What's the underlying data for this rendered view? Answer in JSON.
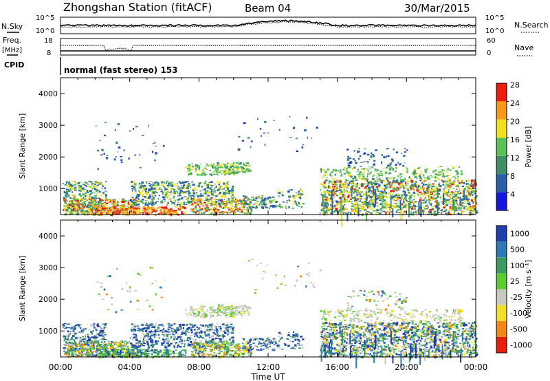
{
  "header": {
    "station_title": "Zhongshan Station (fitACF)",
    "beam": "Beam 04",
    "date": "30/Mar/2015"
  },
  "top_panels": {
    "nsky_label": "N.Sky",
    "nsky_ticks": [
      "10^5",
      "10^0"
    ],
    "nsearch_label": "N.Search",
    "nsearch_ticks": [
      "10^5",
      "10^0"
    ],
    "freq_label": "Freq.",
    "freq_unit": "[MHz]",
    "freq_ticks": [
      "18",
      "8"
    ],
    "nave_label": "Nave",
    "nave_ticks": [
      "60",
      "0"
    ],
    "cpid_label": "CPID",
    "cpid_text": "normal (fast stereo) 153"
  },
  "chart_data": [
    {
      "type": "heatmap",
      "name": "power",
      "ylabel": "Slant Range [km]",
      "yticks": [
        1000,
        2000,
        3000,
        4000
      ],
      "ylim": [
        180,
        4500
      ],
      "xlim": [
        0,
        24
      ],
      "colorbar_label": "Power [dB]",
      "colorbar_ticks": [
        "4",
        "8",
        "12",
        "16",
        "20",
        "24",
        "28"
      ],
      "colors": [
        "#1515e0",
        "#2a5fa8",
        "#3e8f68",
        "#56c256",
        "#f2e01c",
        "#f59a18",
        "#ef1c0e"
      ]
    },
    {
      "type": "heatmap",
      "name": "velocity",
      "ylabel": "Slant Range [km]",
      "yticks": [
        1000,
        2000,
        3000,
        4000
      ],
      "ylim": [
        180,
        4500
      ],
      "xlim": [
        0,
        24
      ],
      "colorbar_label": "Velocity [m s⁻¹]",
      "colorbar_ticks": [
        "1000",
        "500",
        "100",
        "25",
        "-25",
        "-100",
        "-500",
        "-1000"
      ],
      "colors": [
        "#1e3fb0",
        "#2f78b8",
        "#3c9a60",
        "#58cc30",
        "#c8c8bf",
        "#f2e028",
        "#f08a14",
        "#e81d0e"
      ]
    }
  ],
  "xaxis": {
    "ticks": [
      "00:00",
      "04:00",
      "08:00",
      "12:00",
      "16:00",
      "20:00",
      "00:00"
    ],
    "label": "Time UT"
  }
}
